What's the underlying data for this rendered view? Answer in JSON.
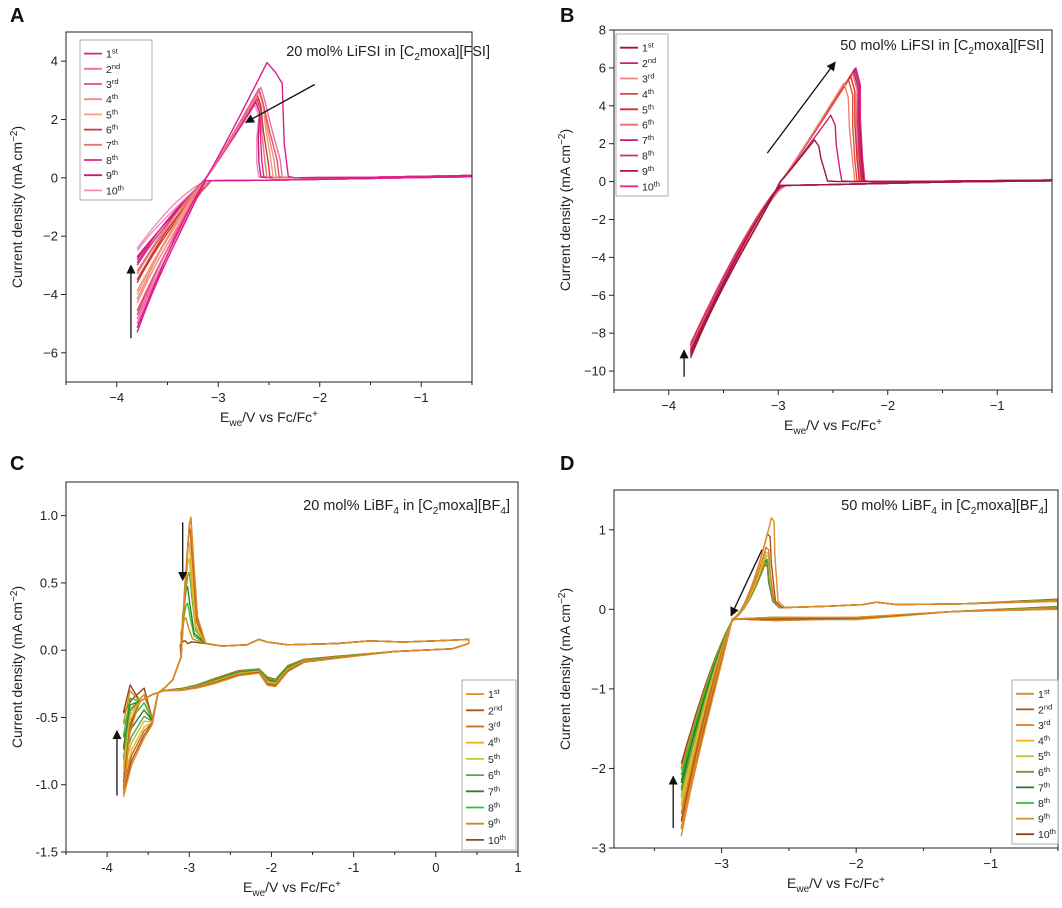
{
  "figure": {
    "panels": [
      "A",
      "B",
      "C",
      "D"
    ]
  },
  "chart_data": [
    {
      "type": "line",
      "panel": "A",
      "title": "20 mol% LiFSI in [C2moxa][FSI]",
      "title_parts": [
        "20 mol% LiFSI in [C",
        "2",
        "moxa][FSI]"
      ],
      "xlabel": "Ewe/V vs Fc/Fc+",
      "ylabel": "Current density (mA cm-2)",
      "xlim": [
        -4.5,
        -0.5
      ],
      "ylim": [
        -7,
        5
      ],
      "xticks": [
        -4,
        -3,
        -2,
        -1
      ],
      "yticks": [
        -6,
        -4,
        -2,
        0,
        2,
        4
      ],
      "cv": {
        "x_min": -3.8,
        "x_max": -0.5,
        "cross_x": -3.12,
        "return_offset": -0.1,
        "cathodic_start": [
          -5.3,
          -5.0,
          -4.7,
          -4.3,
          -4.0,
          -3.6,
          -3.3,
          -3.0,
          -2.8,
          -2.5
        ],
        "peak_x": [
          -2.52,
          -2.58,
          -2.6,
          -2.6,
          -2.6,
          -2.62,
          -2.62,
          -2.62,
          -2.63,
          -2.64
        ],
        "peak_y": [
          3.95,
          3.1,
          3.05,
          3.0,
          2.95,
          2.9,
          2.8,
          2.7,
          2.6,
          2.5
        ],
        "drop_x": [
          -2.35,
          -2.37,
          -2.4,
          -2.43,
          -2.46,
          -2.49,
          -2.52,
          -2.55,
          -2.58,
          -2.6
        ],
        "sharp": [
          true,
          false,
          false,
          false,
          false,
          false,
          false,
          false,
          false,
          false
        ]
      },
      "arrow_up": {
        "x": -3.86,
        "y0": -5.5,
        "y1": -3.0
      },
      "arrow_diag": {
        "x0": -2.05,
        "y0": 3.2,
        "x1": -2.73,
        "y1": 1.9
      },
      "legend": {
        "position": "top-left",
        "labels": [
          "1",
          "2",
          "3",
          "4",
          "5",
          "6",
          "7",
          "8",
          "9",
          "10"
        ],
        "suffixes": [
          "st",
          "nd",
          "rd",
          "th",
          "th",
          "th",
          "th",
          "th",
          "th",
          "th"
        ]
      },
      "colors": [
        "#dc1e8c",
        "#f06ca8",
        "#e0506e",
        "#f28a7a",
        "#f0a07a",
        "#d4353a",
        "#e2786e",
        "#e02685",
        "#c81a78",
        "#f08cbe"
      ]
    },
    {
      "type": "line",
      "panel": "B",
      "title": "50 mol% LiFSI in [C2moxa][FSI]",
      "title_parts": [
        "50 mol% LiFSI in [C",
        "2",
        "moxa][FSI]"
      ],
      "xlabel": "Ewe/V vs Fc/Fc+",
      "ylabel": "Current density (mA cm-2)",
      "xlim": [
        -4.5,
        -0.5
      ],
      "ylim": [
        -11,
        8
      ],
      "xticks": [
        -4,
        -3,
        -2,
        -1
      ],
      "yticks": [
        -10,
        -8,
        -6,
        -4,
        -2,
        0,
        2,
        4,
        6,
        8
      ],
      "cv": {
        "x_min": -3.8,
        "x_max": -0.5,
        "cross_x": -2.98,
        "return_offset": -0.2,
        "cathodic_start": [
          -9.3,
          -9.2,
          -9.2,
          -9.1,
          -9.1,
          -9.0,
          -9.0,
          -8.9,
          -8.9,
          -8.8
        ],
        "peak_x": [
          -2.67,
          -2.52,
          -2.4,
          -2.36,
          -2.34,
          -2.32,
          -2.31,
          -2.3,
          -2.3,
          -2.29
        ],
        "peak_y": [
          2.2,
          3.5,
          5.2,
          5.4,
          5.6,
          5.7,
          5.8,
          5.9,
          5.95,
          6.0
        ],
        "drop_x": [
          -2.55,
          -2.42,
          -2.3,
          -2.28,
          -2.26,
          -2.25,
          -2.24,
          -2.23,
          -2.22,
          -2.21
        ],
        "sharp": [
          false,
          false,
          false,
          false,
          false,
          false,
          false,
          false,
          false,
          false
        ]
      },
      "arrow_up": {
        "x": -3.86,
        "y0": -10.3,
        "y1": -8.9
      },
      "arrow_diag": {
        "x0": -3.1,
        "y0": 1.5,
        "x1": -2.48,
        "y1": 6.3
      },
      "legend": {
        "position": "top-left",
        "labels": [
          "1",
          "2",
          "3",
          "4",
          "5",
          "6",
          "7",
          "8",
          "9",
          "10"
        ],
        "suffixes": [
          "st",
          "nd",
          "rd",
          "th",
          "th",
          "th",
          "th",
          "th",
          "th",
          "th"
        ]
      },
      "colors": [
        "#9c1840",
        "#c8207c",
        "#f08070",
        "#e04a3a",
        "#e02830",
        "#ec6e64",
        "#c01c88",
        "#d0305a",
        "#b0103a",
        "#ea2a86"
      ]
    },
    {
      "type": "line",
      "panel": "C",
      "title": "20 mol% LiBF4 in [C2moxa][BF4]",
      "title_parts": [
        "20 mol% LiBF",
        "4",
        " in [C",
        "2",
        "moxa][BF",
        "4",
        "]"
      ],
      "xlabel": "Ewe/V vs Fc/Fc+",
      "ylabel": "Current density (mA cm-2)",
      "xlim": [
        -4.5,
        1.0
      ],
      "ylim": [
        -1.5,
        1.25
      ],
      "xticks": [
        -4,
        -3,
        -2,
        -1,
        0,
        1
      ],
      "xtick_labels": [
        "-4",
        "-3",
        "-2",
        "-1",
        "0",
        "1"
      ],
      "yticks": [
        -1.5,
        -1.0,
        -0.5,
        0.0,
        0.5,
        1.0
      ],
      "ytick_labels": [
        "-1.5",
        "-1.0",
        "-0.5",
        "0.0",
        "0.5",
        "1.0"
      ],
      "cv": {
        "x_min": -3.8,
        "x_max": 0.4,
        "cathodic_start": [
          -1.09,
          -1.05,
          -1.0,
          -0.95,
          -0.88,
          -0.82,
          -0.74,
          -0.65,
          -0.55,
          -0.47
        ],
        "peak_x": [
          -2.98,
          -2.98,
          -2.99,
          -3.0,
          -3.0,
          -3.0,
          -3.02,
          -3.02,
          -3.04,
          -3.05
        ],
        "peak_y": [
          0.99,
          0.98,
          0.9,
          0.8,
          0.68,
          0.58,
          0.47,
          0.35,
          0.24,
          0.07
        ]
      },
      "arrow_up": {
        "x": -3.88,
        "y0": -1.08,
        "y1": -0.6
      },
      "arrow_down": {
        "x": -3.08,
        "y0": 0.95,
        "y1": 0.52
      },
      "legend": {
        "position": "lower-right",
        "labels": [
          "1",
          "2",
          "3",
          "4",
          "5",
          "6",
          "7",
          "8",
          "9",
          "10"
        ],
        "suffixes": [
          "st",
          "nd",
          "rd",
          "th",
          "th",
          "th",
          "th",
          "th",
          "th",
          "th"
        ]
      },
      "colors": [
        "#e08a2a",
        "#a8561a",
        "#c46a1e",
        "#f0b21a",
        "#b8c83a",
        "#6aa040",
        "#3a7a2a",
        "#2ec02e",
        "#d08a1a",
        "#9a4414"
      ]
    },
    {
      "type": "line",
      "panel": "D",
      "title": "50 mol% LiBF4 in [C2moxa][BF4]",
      "title_parts": [
        "50 mol% LiBF",
        "4",
        " in [C",
        "2",
        "moxa][BF",
        "4",
        "]"
      ],
      "xlabel": "Ewe/V vs Fc/Fc+",
      "ylabel": "Current density (mA cm-2)",
      "xlim": [
        -3.8,
        -0.5
      ],
      "ylim": [
        -3,
        1.5
      ],
      "xticks": [
        -3,
        -2,
        -1
      ],
      "yticks": [
        -3,
        -2,
        -1,
        0,
        1
      ],
      "cv": {
        "x_min": -3.3,
        "x_max": -0.5,
        "cross_x": -2.92,
        "return_offset": -0.1,
        "cathodic_start": [
          -2.85,
          -2.75,
          -2.65,
          -2.55,
          -2.45,
          -2.35,
          -2.25,
          -2.15,
          -2.08,
          -2.0
        ],
        "peak_x": [
          -2.63,
          -2.66,
          -2.67,
          -2.67,
          -2.67,
          -2.68,
          -2.68,
          -2.68,
          -2.68,
          -2.68
        ],
        "peak_y": [
          1.15,
          0.95,
          0.78,
          0.72,
          0.68,
          0.65,
          0.62,
          0.6,
          0.58,
          0.56
        ],
        "drop_x": [
          -2.58,
          -2.6,
          -2.61,
          -2.61,
          -2.61,
          -2.62,
          -2.62,
          -2.62,
          -2.62,
          -2.62
        ]
      },
      "arrow_up": {
        "x": -3.36,
        "y0": -2.75,
        "y1": -2.1
      },
      "arrow_diag": {
        "x0": -2.7,
        "y0": 0.75,
        "x1": -2.93,
        "y1": -0.08
      },
      "legend": {
        "position": "lower-right",
        "labels": [
          "1",
          "2",
          "3",
          "4",
          "5",
          "6",
          "7",
          "8",
          "9",
          "10"
        ],
        "suffixes": [
          "st",
          "nd",
          "rd",
          "th",
          "th",
          "th",
          "th",
          "th",
          "th",
          "th"
        ]
      },
      "colors": [
        "#e08a2a",
        "#a8561a",
        "#d8802a",
        "#f0b21a",
        "#b8c83a",
        "#6a9a40",
        "#2a7a2a",
        "#2ec02e",
        "#d09020",
        "#9a4414"
      ]
    }
  ]
}
